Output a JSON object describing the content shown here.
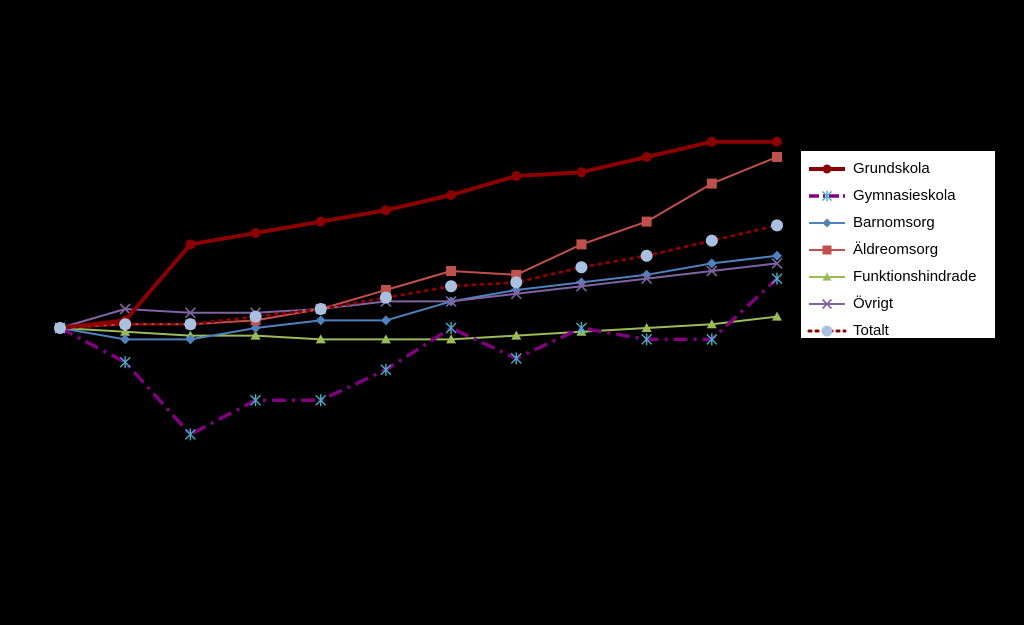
{
  "chart_data": {
    "type": "line",
    "title": "",
    "xlabel": "",
    "ylabel": "",
    "x": [
      0,
      1,
      2,
      3,
      4,
      5,
      6,
      7,
      8,
      9,
      10,
      11
    ],
    "ylim": [
      -25,
      50
    ],
    "grid": false,
    "legend_position": "right",
    "series": [
      {
        "name": "Grundskola",
        "color": "#8B0000",
        "marker": "circle",
        "line_style": "solid",
        "values": [
          0,
          2,
          22,
          25,
          28,
          31,
          35,
          40,
          41,
          45,
          49,
          49
        ]
      },
      {
        "name": "Gymnasieskola",
        "color": "#800080",
        "marker_color": "#4BACC6",
        "marker": "asterisk",
        "line_style": "dashdot",
        "values": [
          0,
          -9,
          -28,
          -19,
          -19,
          -11,
          0,
          -8,
          0,
          -3,
          -3,
          13
        ]
      },
      {
        "name": "Barnomsorg",
        "color": "#4F81BD",
        "marker": "diamond",
        "line_style": "solid",
        "values": [
          0,
          -3,
          -3,
          0,
          2,
          2,
          7,
          10,
          12,
          14,
          17,
          19
        ]
      },
      {
        "name": "Äldreomsorg",
        "color": "#C0504D",
        "marker": "square",
        "line_style": "solid",
        "values": [
          0,
          1,
          1,
          2,
          5,
          10,
          15,
          14,
          22,
          28,
          38,
          45
        ]
      },
      {
        "name": "Funktionshindrade",
        "color": "#9BBB59",
        "marker": "triangle",
        "line_style": "solid",
        "values": [
          0,
          -1,
          -2,
          -2,
          -3,
          -3,
          -3,
          -2,
          -1,
          0,
          1,
          3
        ]
      },
      {
        "name": "Övrigt",
        "color": "#8064A2",
        "marker": "x",
        "line_style": "solid",
        "values": [
          0,
          5,
          4,
          4,
          5,
          7,
          7,
          9,
          11,
          13,
          15,
          17
        ]
      },
      {
        "name": "Totalt",
        "color": "#8B0000",
        "marker_color": "#A9C0E0",
        "marker": "big-circle",
        "line_style": "dotted",
        "values": [
          0,
          1,
          1,
          3,
          5,
          8,
          11,
          12,
          16,
          19,
          23,
          27
        ]
      }
    ]
  }
}
